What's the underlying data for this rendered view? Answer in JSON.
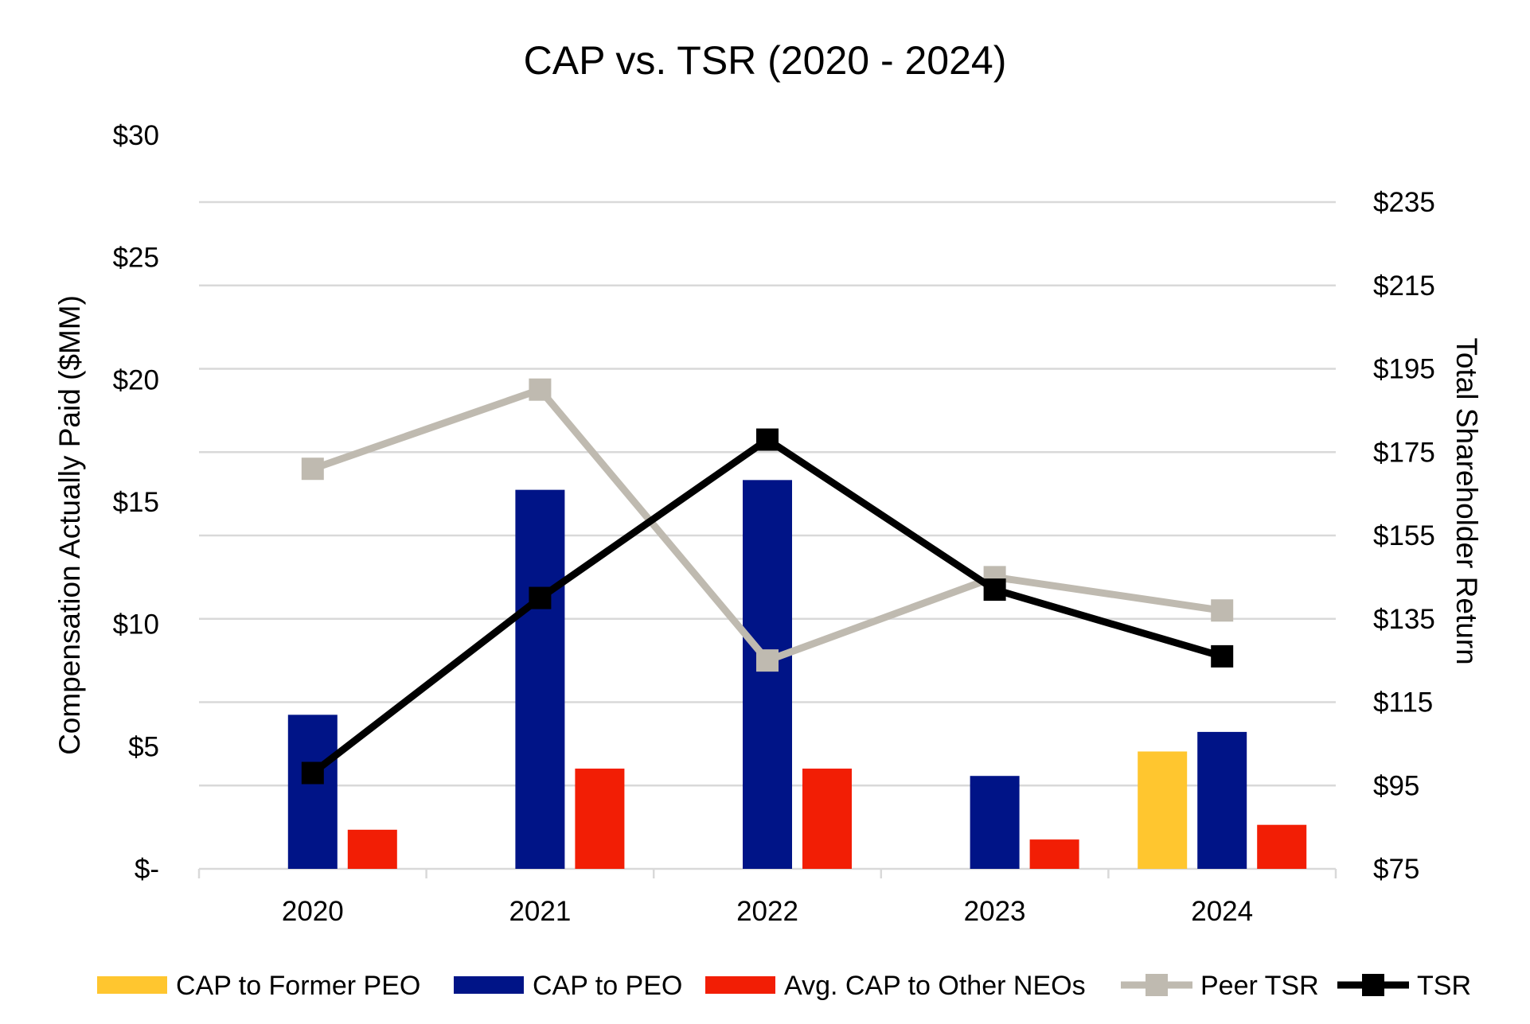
{
  "chart_data": {
    "type": "bar",
    "title": "CAP vs. TSR (2020 - 2024)",
    "categories": [
      "2020",
      "2021",
      "2022",
      "2023",
      "2024"
    ],
    "xlabel": "",
    "ylabel": "Compensation Actually Paid ($MM)",
    "y2label": "Total Shareholder Return",
    "ylim": [
      0,
      30
    ],
    "y2lim": [
      75,
      250
    ],
    "y_ticks": [
      "$-",
      "$5",
      "$10",
      "$15",
      "$20",
      "$25",
      "$30"
    ],
    "y_tick_values": [
      0,
      5,
      10,
      15,
      20,
      25,
      30
    ],
    "y2_ticks": [
      "$75",
      "$95",
      "$115",
      "$135",
      "$155",
      "$175",
      "$195",
      "$215",
      "$235"
    ],
    "y2_tick_values": [
      75,
      95,
      115,
      135,
      155,
      175,
      195,
      215,
      235
    ],
    "grid": true,
    "legend_position": "bottom",
    "bar_series": [
      {
        "name": "CAP to Former PEO",
        "color": "#FFC62F",
        "values": [
          null,
          null,
          null,
          null,
          4.8
        ]
      },
      {
        "name": "CAP to PEO",
        "color": "#001487",
        "values": [
          6.3,
          15.5,
          15.9,
          3.8,
          5.6
        ]
      },
      {
        "name": "Avg. CAP to Other NEOs",
        "color": "#F21E05",
        "values": [
          1.6,
          4.1,
          4.1,
          1.2,
          1.8
        ]
      }
    ],
    "line_series": [
      {
        "name": "Peer TSR",
        "color": "#BFBAB0",
        "axis": "right",
        "values": [
          171,
          190,
          125,
          145,
          137
        ]
      },
      {
        "name": "TSR",
        "color": "#000000",
        "axis": "right",
        "values": [
          98,
          140,
          178,
          142,
          126
        ]
      }
    ]
  }
}
